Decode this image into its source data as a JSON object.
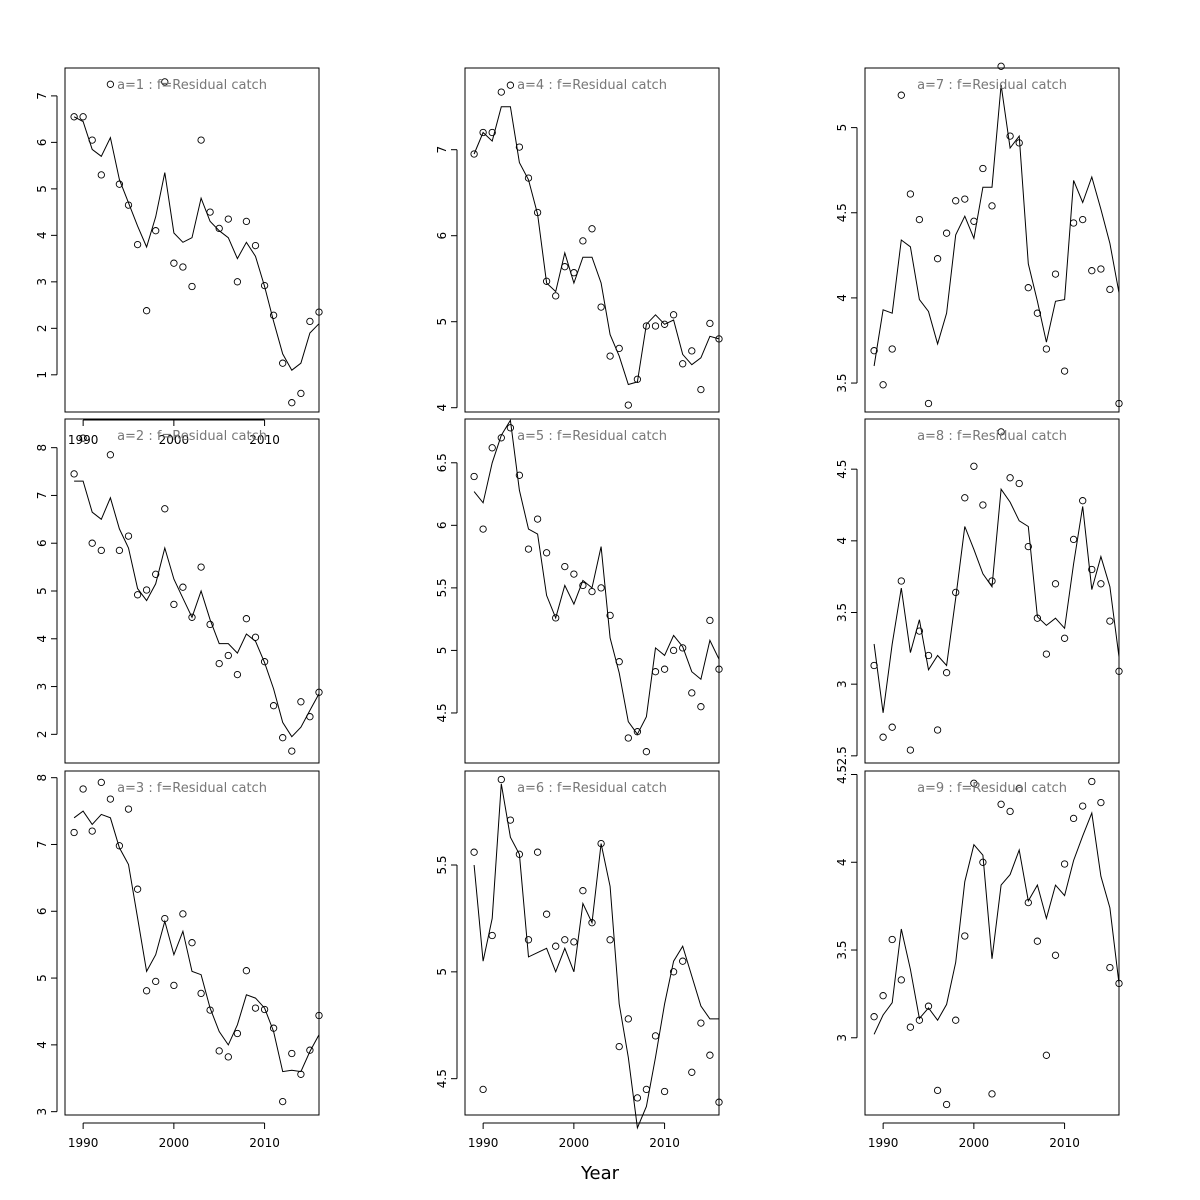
{
  "figure": {
    "xlabel": "Year",
    "x_ticks": [
      1990,
      2000,
      2010
    ],
    "point_symbol": "open-circle",
    "line_color": "#000000",
    "title_color": "#777777"
  },
  "chart_data": [
    {
      "type": "line",
      "title": "a=1  :  f=Residual catch",
      "xlim": [
        1988,
        2016
      ],
      "ylim": [
        0.2,
        7.6
      ],
      "y_ticks": [
        1,
        2,
        3,
        4,
        5,
        6,
        7
      ],
      "show_x_axis": true,
      "x": [
        1989,
        1990,
        1991,
        1992,
        1993,
        1994,
        1995,
        1996,
        1997,
        1998,
        1999,
        2000,
        2001,
        2002,
        2003,
        2004,
        2005,
        2006,
        2007,
        2008,
        2009,
        2010,
        2011,
        2012,
        2013,
        2014,
        2015,
        2016
      ],
      "series": [
        {
          "role": "fitted",
          "values": [
            6.55,
            6.45,
            5.85,
            5.7,
            6.1,
            5.2,
            4.7,
            4.2,
            3.75,
            4.4,
            5.35,
            4.05,
            3.85,
            3.95,
            4.8,
            4.3,
            4.1,
            3.95,
            3.5,
            3.85,
            3.55,
            2.9,
            2.15,
            1.45,
            1.1,
            1.25,
            1.9,
            2.1
          ]
        },
        {
          "role": "observed",
          "values": [
            6.55,
            6.55,
            6.05,
            5.3,
            7.25,
            5.1,
            4.65,
            3.8,
            2.38,
            4.1,
            7.3,
            3.4,
            3.32,
            2.9,
            6.05,
            4.5,
            4.15,
            4.35,
            3.0,
            4.3,
            3.78,
            2.92,
            2.28,
            1.25,
            0.4,
            0.6,
            2.15,
            2.35
          ]
        }
      ]
    },
    {
      "type": "line",
      "title": "a=2  :  f=Residual catch",
      "xlim": [
        1988,
        2016
      ],
      "ylim": [
        1.4,
        8.6
      ],
      "y_ticks": [
        2,
        3,
        4,
        5,
        6,
        7,
        8
      ],
      "show_x_axis": false,
      "x": [
        1989,
        1990,
        1991,
        1992,
        1993,
        1994,
        1995,
        1996,
        1997,
        1998,
        1999,
        2000,
        2001,
        2002,
        2003,
        2004,
        2005,
        2006,
        2007,
        2008,
        2009,
        2010,
        2011,
        2012,
        2013,
        2014,
        2015,
        2016
      ],
      "series": [
        {
          "role": "fitted",
          "values": [
            7.3,
            7.3,
            6.65,
            6.5,
            6.95,
            6.3,
            5.9,
            5.05,
            4.8,
            5.15,
            5.9,
            5.25,
            4.85,
            4.45,
            5.0,
            4.4,
            3.9,
            3.9,
            3.7,
            4.1,
            3.95,
            3.5,
            2.95,
            2.25,
            1.95,
            2.15,
            2.5,
            2.85
          ]
        },
        {
          "role": "observed",
          "values": [
            7.45,
            8.2,
            6.0,
            5.85,
            7.85,
            5.85,
            6.15,
            4.92,
            5.02,
            5.35,
            6.72,
            4.72,
            5.08,
            4.45,
            5.5,
            4.3,
            3.48,
            3.65,
            3.25,
            4.42,
            4.03,
            3.52,
            2.6,
            1.93,
            1.65,
            2.68,
            2.37,
            2.88
          ]
        }
      ]
    },
    {
      "type": "line",
      "title": "a=3  :  f=Residual catch",
      "xlim": [
        1988,
        2016
      ],
      "ylim": [
        2.95,
        8.1
      ],
      "y_ticks": [
        3,
        4,
        5,
        6,
        7,
        8
      ],
      "show_x_axis": true,
      "x": [
        1989,
        1990,
        1991,
        1992,
        1993,
        1994,
        1995,
        1996,
        1997,
        1998,
        1999,
        2000,
        2001,
        2002,
        2003,
        2004,
        2005,
        2006,
        2007,
        2008,
        2009,
        2010,
        2011,
        2012,
        2013,
        2014,
        2015,
        2016
      ],
      "series": [
        {
          "role": "fitted",
          "values": [
            7.4,
            7.5,
            7.3,
            7.45,
            7.4,
            6.95,
            6.7,
            5.9,
            5.1,
            5.35,
            5.85,
            5.35,
            5.7,
            5.1,
            5.05,
            4.55,
            4.2,
            4.0,
            4.3,
            4.75,
            4.7,
            4.55,
            4.2,
            3.6,
            3.62,
            3.6,
            3.9,
            4.15
          ]
        },
        {
          "role": "observed",
          "values": [
            7.18,
            7.83,
            7.2,
            7.93,
            7.68,
            6.98,
            7.53,
            6.33,
            4.81,
            4.95,
            5.89,
            4.89,
            5.96,
            5.53,
            4.77,
            4.52,
            3.91,
            3.82,
            4.17,
            5.11,
            4.55,
            4.53,
            4.25,
            3.15,
            3.87,
            3.56,
            3.92,
            4.44
          ]
        }
      ]
    },
    {
      "type": "line",
      "title": "a=4  :  f=Residual catch",
      "xlim": [
        1988,
        2016
      ],
      "ylim": [
        3.95,
        7.95
      ],
      "y_ticks": [
        4,
        5,
        6,
        7
      ],
      "show_x_axis": false,
      "x": [
        1989,
        1990,
        1991,
        1992,
        1993,
        1994,
        1995,
        1996,
        1997,
        1998,
        1999,
        2000,
        2001,
        2002,
        2003,
        2004,
        2005,
        2006,
        2007,
        2008,
        2009,
        2010,
        2011,
        2012,
        2013,
        2014,
        2015,
        2016
      ],
      "series": [
        {
          "role": "fitted",
          "values": [
            6.95,
            7.2,
            7.1,
            7.5,
            7.5,
            6.85,
            6.65,
            6.25,
            5.45,
            5.35,
            5.8,
            5.45,
            5.75,
            5.75,
            5.45,
            4.85,
            4.6,
            4.27,
            4.3,
            4.97,
            5.08,
            4.97,
            5.02,
            4.62,
            4.5,
            4.58,
            4.83,
            4.8
          ]
        },
        {
          "role": "observed",
          "values": [
            6.95,
            7.2,
            7.2,
            7.67,
            7.75,
            7.03,
            6.67,
            6.27,
            5.47,
            5.3,
            5.64,
            5.57,
            5.94,
            6.08,
            5.17,
            4.6,
            4.69,
            4.03,
            4.33,
            4.95,
            4.95,
            4.97,
            5.08,
            4.51,
            4.66,
            4.21,
            4.98,
            4.8
          ]
        }
      ]
    },
    {
      "type": "line",
      "title": "a=5  :  f=Residual catch",
      "xlim": [
        1988,
        2016
      ],
      "ylim": [
        4.1,
        6.85
      ],
      "y_ticks": [
        4.5,
        5.0,
        5.5,
        6.0,
        6.5
      ],
      "show_x_axis": false,
      "x": [
        1989,
        1990,
        1991,
        1992,
        1993,
        1994,
        1995,
        1996,
        1997,
        1998,
        1999,
        2000,
        2001,
        2002,
        2003,
        2004,
        2005,
        2006,
        2007,
        2008,
        2009,
        2010,
        2011,
        2012,
        2013,
        2014,
        2015,
        2016
      ],
      "series": [
        {
          "role": "fitted",
          "values": [
            6.27,
            6.18,
            6.5,
            6.72,
            6.84,
            6.28,
            5.97,
            5.93,
            5.44,
            5.26,
            5.52,
            5.37,
            5.56,
            5.5,
            5.83,
            5.1,
            4.82,
            4.43,
            4.33,
            4.47,
            5.02,
            4.96,
            5.12,
            5.03,
            4.83,
            4.77,
            5.08,
            4.93
          ]
        },
        {
          "role": "observed",
          "values": [
            6.39,
            5.97,
            6.62,
            6.7,
            6.78,
            6.4,
            5.81,
            6.05,
            5.78,
            5.26,
            5.67,
            5.61,
            5.52,
            5.47,
            5.5,
            5.28,
            4.91,
            4.3,
            4.35,
            4.19,
            4.83,
            4.85,
            5.0,
            5.02,
            4.66,
            4.55,
            5.24,
            4.85
          ]
        }
      ]
    },
    {
      "type": "line",
      "title": "a=6  :  f=Residual catch",
      "xlim": [
        1988,
        2016
      ],
      "ylim": [
        4.33,
        5.94
      ],
      "y_ticks": [
        4.5,
        5.0,
        5.5
      ],
      "show_x_axis": true,
      "x": [
        1989,
        1990,
        1991,
        1992,
        1993,
        1994,
        1995,
        1996,
        1997,
        1998,
        1999,
        2000,
        2001,
        2002,
        2003,
        2004,
        2005,
        2006,
        2007,
        2008,
        2009,
        2010,
        2011,
        2012,
        2013,
        2014,
        2015,
        2016
      ],
      "series": [
        {
          "role": "fitted",
          "values": [
            5.5,
            5.05,
            5.25,
            5.88,
            5.63,
            5.55,
            5.07,
            5.09,
            5.11,
            5.0,
            5.11,
            5.0,
            5.32,
            5.23,
            5.6,
            5.4,
            4.85,
            4.6,
            4.27,
            4.37,
            4.6,
            4.85,
            5.05,
            5.12,
            4.98,
            4.84,
            4.78,
            4.78
          ]
        },
        {
          "role": "observed",
          "values": [
            5.56,
            4.45,
            5.17,
            5.9,
            5.71,
            5.55,
            5.15,
            5.56,
            5.27,
            5.12,
            5.15,
            5.14,
            5.38,
            5.23,
            5.6,
            5.15,
            4.65,
            4.78,
            4.41,
            4.45,
            4.7,
            4.44,
            5.0,
            5.05,
            4.53,
            4.76,
            4.61,
            4.39
          ]
        }
      ]
    },
    {
      "type": "line",
      "title": "a=7  :  f=Residual catch",
      "xlim": [
        1988,
        2016
      ],
      "ylim": [
        3.33,
        5.35
      ],
      "y_ticks": [
        3.5,
        4.0,
        4.5,
        5.0
      ],
      "show_x_axis": false,
      "x": [
        1989,
        1990,
        1991,
        1992,
        1993,
        1994,
        1995,
        1996,
        1997,
        1998,
        1999,
        2000,
        2001,
        2002,
        2003,
        2004,
        2005,
        2006,
        2007,
        2008,
        2009,
        2010,
        2011,
        2012,
        2013,
        2014,
        2015,
        2016
      ],
      "series": [
        {
          "role": "fitted",
          "values": [
            3.6,
            3.93,
            3.91,
            4.34,
            4.3,
            3.99,
            3.92,
            3.73,
            3.91,
            4.37,
            4.48,
            4.35,
            4.65,
            4.65,
            5.25,
            4.88,
            4.95,
            4.2,
            3.98,
            3.74,
            3.98,
            3.99,
            4.69,
            4.56,
            4.71,
            4.52,
            4.32,
            4.03
          ]
        },
        {
          "role": "observed",
          "values": [
            3.69,
            3.49,
            3.7,
            5.19,
            4.61,
            4.46,
            3.38,
            4.23,
            4.38,
            4.57,
            4.58,
            4.45,
            4.76,
            4.54,
            5.36,
            4.95,
            4.91,
            4.06,
            3.91,
            3.7,
            4.14,
            3.57,
            4.44,
            4.46,
            4.16,
            4.17,
            4.05,
            3.38
          ]
        }
      ]
    },
    {
      "type": "line",
      "title": "a=8  :  f=Residual catch",
      "xlim": [
        1988,
        2016
      ],
      "ylim": [
        2.45,
        4.85
      ],
      "y_ticks": [
        2.5,
        3.0,
        3.5,
        4.0,
        4.5
      ],
      "show_x_axis": false,
      "x": [
        1989,
        1990,
        1991,
        1992,
        1993,
        1994,
        1995,
        1996,
        1997,
        1998,
        1999,
        2000,
        2001,
        2002,
        2003,
        2004,
        2005,
        2006,
        2007,
        2008,
        2009,
        2010,
        2011,
        2012,
        2013,
        2014,
        2015,
        2016
      ],
      "series": [
        {
          "role": "fitted",
          "values": [
            3.28,
            2.8,
            3.28,
            3.67,
            3.22,
            3.45,
            3.1,
            3.2,
            3.13,
            3.6,
            4.1,
            3.94,
            3.77,
            3.68,
            4.36,
            4.27,
            4.14,
            4.1,
            3.47,
            3.41,
            3.46,
            3.39,
            3.84,
            4.24,
            3.66,
            3.89,
            3.68,
            3.19
          ]
        },
        {
          "role": "observed",
          "values": [
            3.13,
            2.63,
            2.7,
            3.72,
            2.54,
            3.37,
            3.2,
            2.68,
            3.08,
            3.64,
            4.3,
            4.52,
            4.25,
            3.72,
            4.76,
            4.44,
            4.4,
            3.96,
            3.46,
            3.21,
            3.7,
            3.32,
            4.01,
            4.28,
            3.8,
            3.7,
            3.44,
            3.09
          ]
        }
      ]
    },
    {
      "type": "line",
      "title": "a=9  :  f=Residual catch",
      "xlim": [
        1988,
        2016
      ],
      "ylim": [
        2.56,
        4.52
      ],
      "y_ticks": [
        3.0,
        3.5,
        4.0,
        4.5
      ],
      "show_x_axis": true,
      "x": [
        1989,
        1990,
        1991,
        1992,
        1993,
        1994,
        1995,
        1996,
        1997,
        1998,
        1999,
        2000,
        2001,
        2002,
        2003,
        2004,
        2005,
        2006,
        2007,
        2008,
        2009,
        2010,
        2011,
        2012,
        2013,
        2014,
        2015,
        2016
      ],
      "series": [
        {
          "role": "fitted",
          "values": [
            3.02,
            3.13,
            3.2,
            3.62,
            3.39,
            3.11,
            3.17,
            3.1,
            3.19,
            3.43,
            3.89,
            4.1,
            4.04,
            3.45,
            3.87,
            3.93,
            4.07,
            3.78,
            3.87,
            3.68,
            3.87,
            3.81,
            4.01,
            4.15,
            4.28,
            3.92,
            3.74,
            3.31
          ]
        },
        {
          "role": "observed",
          "values": [
            3.12,
            3.24,
            3.56,
            3.33,
            3.06,
            3.1,
            3.18,
            2.7,
            2.62,
            3.1,
            3.58,
            4.45,
            4.0,
            2.68,
            4.33,
            4.29,
            4.42,
            3.77,
            3.55,
            2.9,
            3.47,
            3.99,
            4.25,
            4.32,
            4.46,
            4.34,
            3.4,
            3.31
          ]
        }
      ]
    }
  ]
}
